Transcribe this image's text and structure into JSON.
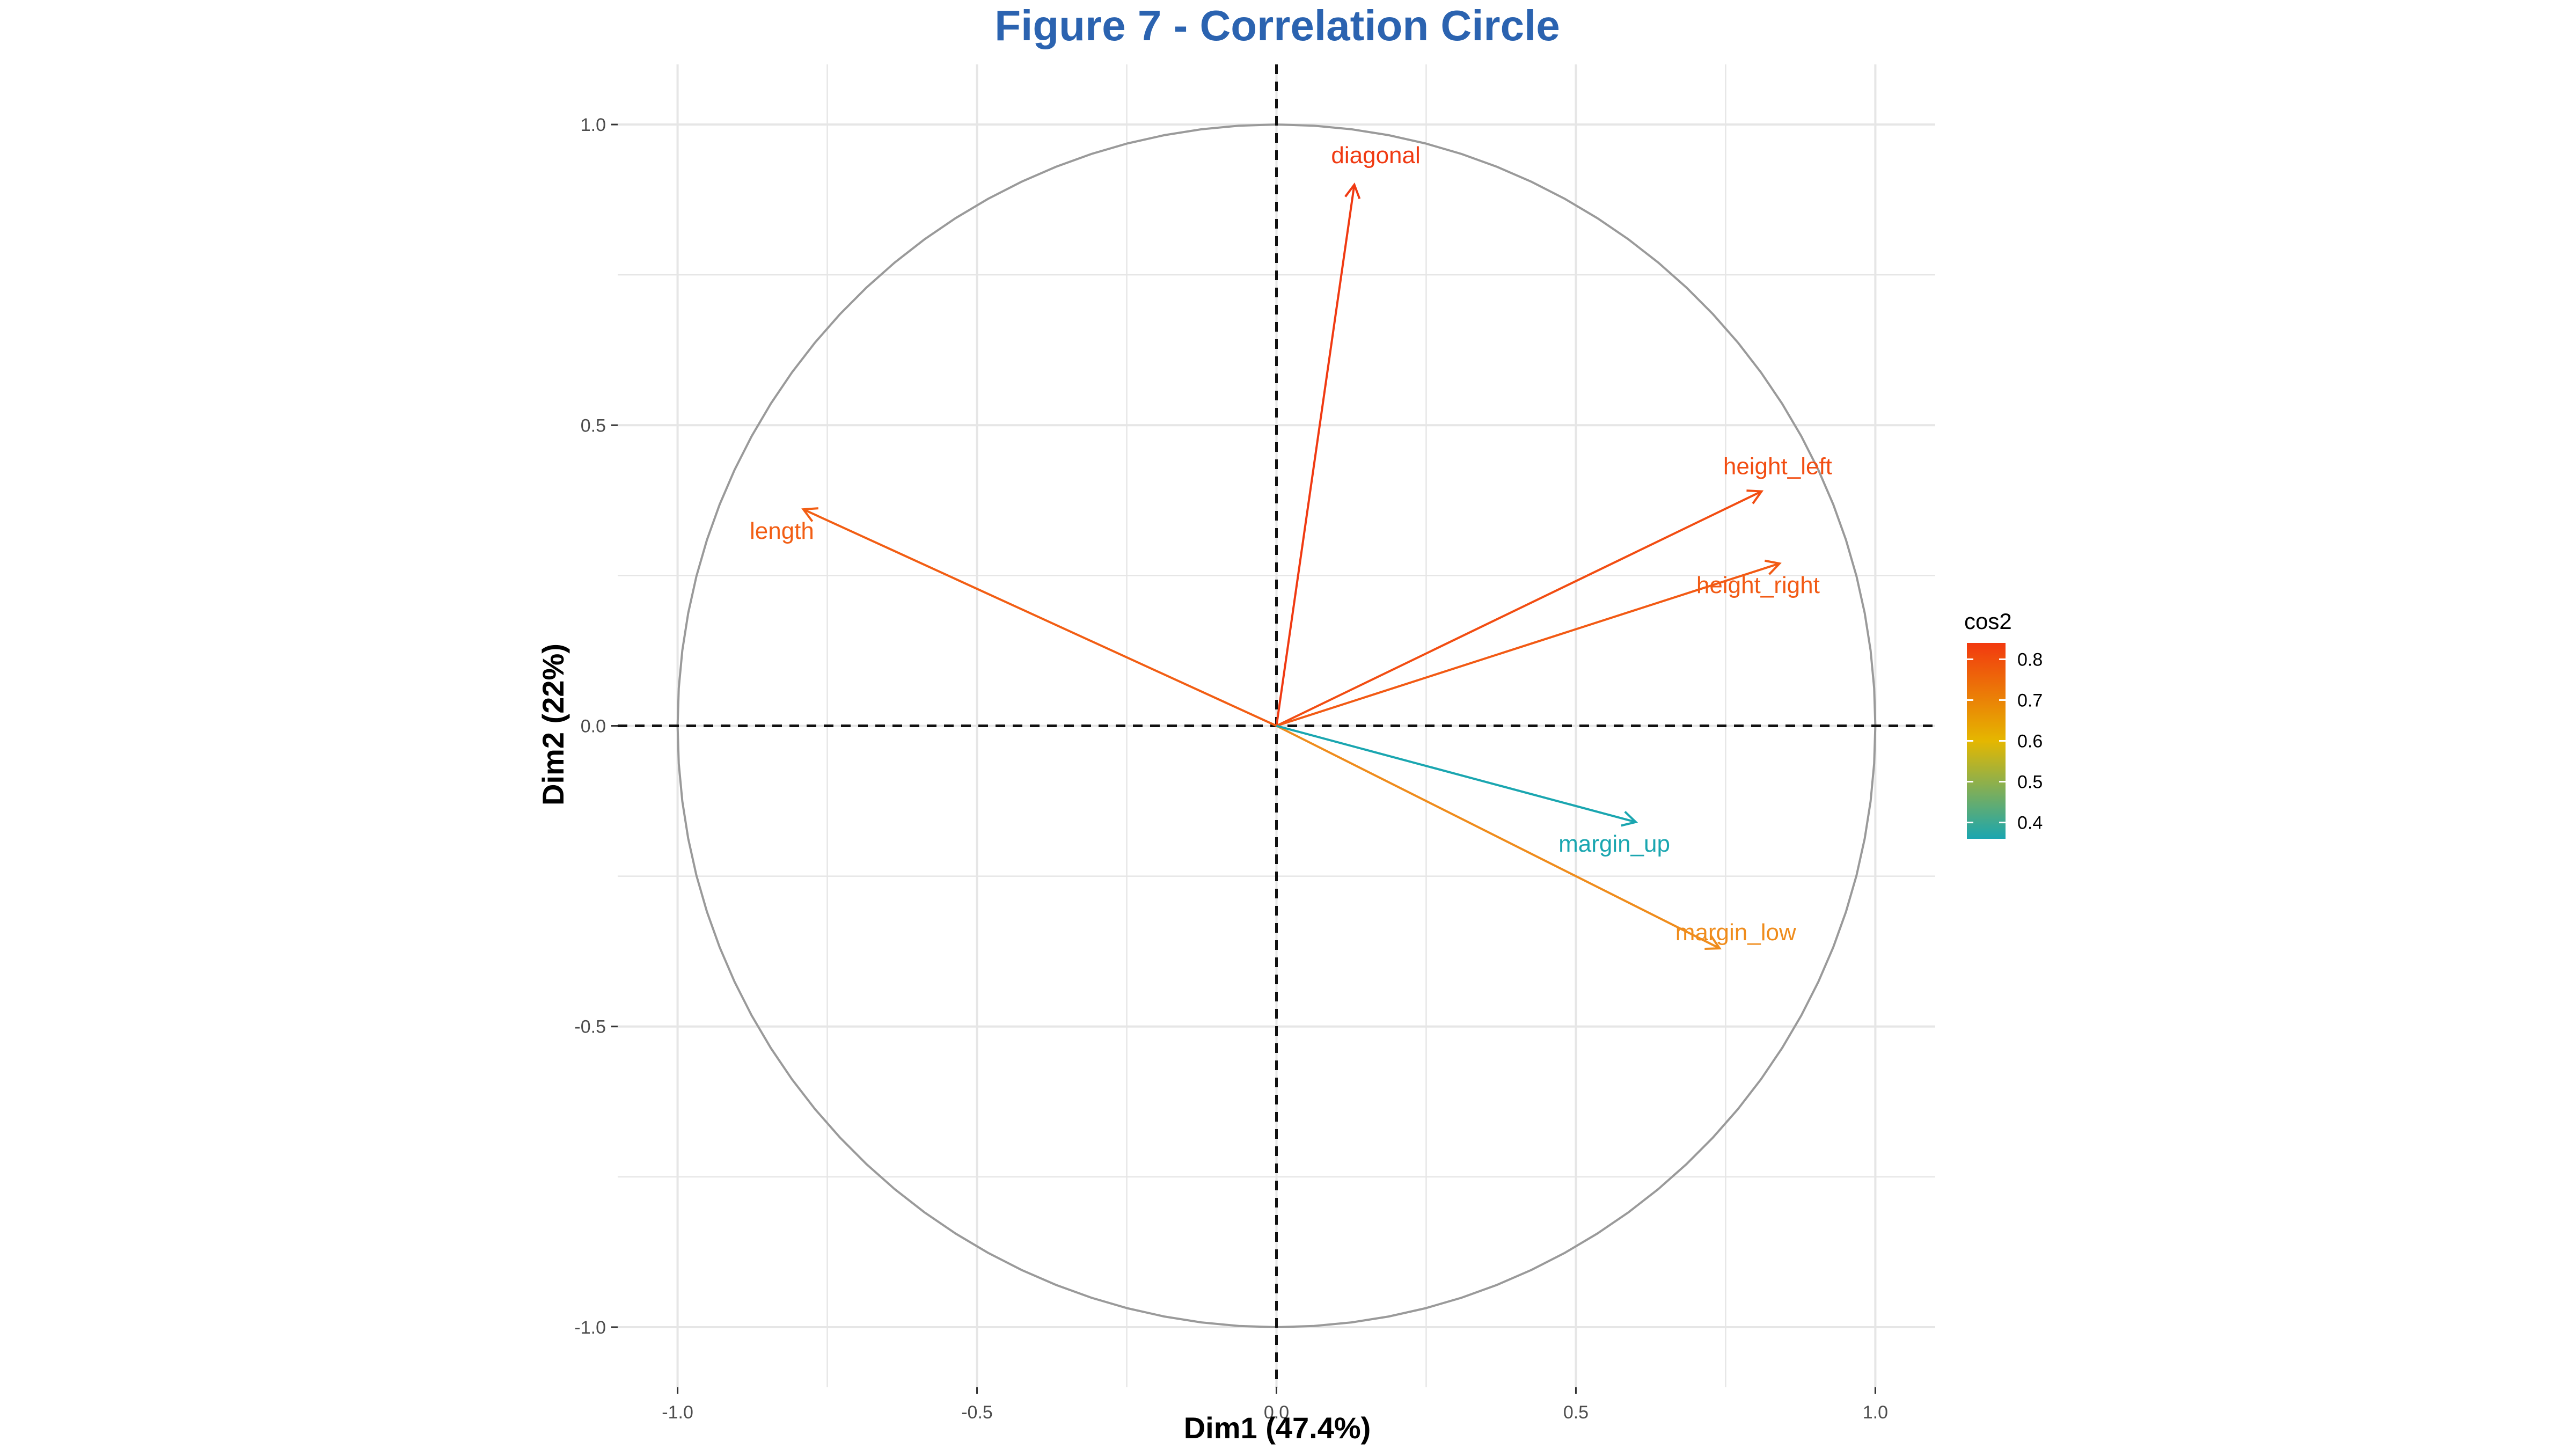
{
  "chart_data": {
    "type": "scatter",
    "subtype": "correlation-circle",
    "title": "Figure 7 - Correlation Circle",
    "xlabel": "Dim1 (47.4%)",
    "ylabel": "Dim2 (22%)",
    "xlim": [
      -1.1,
      1.1
    ],
    "ylim": [
      -1.1,
      1.1
    ],
    "xticks": [
      -1.0,
      -0.5,
      0.0,
      0.5,
      1.0
    ],
    "yticks": [
      -1.0,
      -0.5,
      0.0,
      0.5,
      1.0
    ],
    "xtick_labels": [
      "-1.0",
      "-0.5",
      "0.0",
      "0.5",
      "1.0"
    ],
    "ytick_labels": [
      "-1.0",
      "-0.5",
      "0.0",
      "0.5",
      "1.0"
    ],
    "grid": true,
    "unit_circle": true,
    "reference_lines": {
      "x": 0,
      "y": 0,
      "style": "dashed"
    },
    "variables": [
      {
        "name": "diagonal",
        "x": 0.13,
        "y": 0.9,
        "cos2": 0.83,
        "color": "#f03a12"
      },
      {
        "name": "height_left",
        "x": 0.81,
        "y": 0.39,
        "cos2": 0.8,
        "color": "#f24d12"
      },
      {
        "name": "height_right",
        "x": 0.84,
        "y": 0.27,
        "cos2": 0.78,
        "color": "#f25a14"
      },
      {
        "name": "length",
        "x": -0.79,
        "y": 0.36,
        "cos2": 0.75,
        "color": "#f25e14"
      },
      {
        "name": "margin_low",
        "x": 0.74,
        "y": -0.37,
        "cos2": 0.68,
        "color": "#ef8c1c"
      },
      {
        "name": "margin_up",
        "x": 0.6,
        "y": -0.16,
        "cos2": 0.38,
        "color": "#1aa6b0"
      }
    ],
    "legend": {
      "title": "cos2",
      "position": "right",
      "ticks": [
        0.4,
        0.5,
        0.6,
        0.7,
        0.8
      ],
      "tick_labels": [
        "0.4",
        "0.5",
        "0.6",
        "0.7",
        "0.8"
      ],
      "range": [
        0.36,
        0.84
      ],
      "colors": [
        "#1aa6b0",
        "#e5b700",
        "#f2390f"
      ]
    },
    "colors": {
      "title": "#2b63b0",
      "circle": "#9a9a9a",
      "grid": "#e6e6e6",
      "reference_line": "#111111"
    }
  }
}
